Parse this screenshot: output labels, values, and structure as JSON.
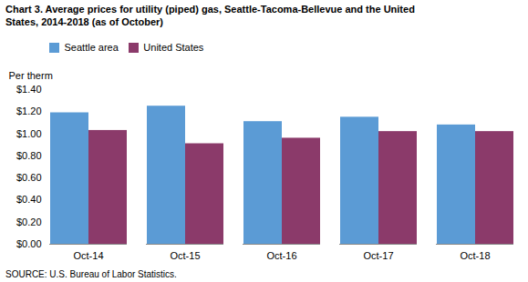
{
  "chart_data": {
    "type": "bar",
    "title": "Chart 3. Average prices for utility (piped) gas, Seattle-Tacoma-Bellevue and the United\nStates, 2014-2018  (as of October)",
    "ylabel": "Per therm",
    "caption": "SOURCE: U.S. Bureau of Labor Statistics.",
    "categories": [
      "Oct-14",
      "Oct-15",
      "Oct-16",
      "Oct-17",
      "Oct-18"
    ],
    "series": [
      {
        "name": "Seattle area",
        "color": "#5B9BD5",
        "values": [
          1.19,
          1.25,
          1.11,
          1.15,
          1.08
        ]
      },
      {
        "name": "United States",
        "color": "#8B3A6A",
        "values": [
          1.03,
          0.91,
          0.96,
          1.02,
          1.02
        ]
      }
    ],
    "ylim": [
      0.0,
      1.4
    ],
    "yticks": [
      {
        "value": 0.0,
        "label": "$0.00"
      },
      {
        "value": 0.2,
        "label": "$0.20"
      },
      {
        "value": 0.4,
        "label": "$0.40"
      },
      {
        "value": 0.6,
        "label": "$0.60"
      },
      {
        "value": 0.8,
        "label": "$0.80"
      },
      {
        "value": 1.0,
        "label": "$1.00"
      },
      {
        "value": 1.2,
        "label": "$1.20"
      },
      {
        "value": 1.4,
        "label": "$1.40"
      }
    ],
    "grid": false,
    "legend": "upper left"
  }
}
